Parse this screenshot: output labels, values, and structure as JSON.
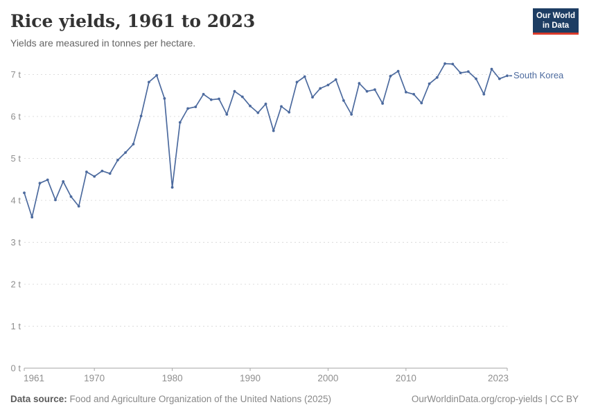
{
  "header": {
    "title": "Rice yields, 1961 to 2023",
    "subtitle": "Yields are measured in tonnes per hectare."
  },
  "logo": {
    "line1": "Our World",
    "line2": "in Data",
    "bg_color": "#1d3d63",
    "accent_color": "#d93a2b"
  },
  "chart_data": {
    "type": "line",
    "title": "Rice yields, 1961 to 2023",
    "ylabel": "tonnes per hectare",
    "xlabel": "",
    "xlim": [
      1961,
      2023
    ],
    "ylim": [
      0,
      7
    ],
    "grid": "horizontal-dashed",
    "legend_position": "end-of-line",
    "xticks": [
      1961,
      1970,
      1980,
      1990,
      2000,
      2010,
      2023
    ],
    "yticks": [
      0,
      1,
      2,
      3,
      4,
      5,
      6,
      7
    ],
    "ytick_suffix": " t",
    "axis_color": "#a5a5a5",
    "grid_color": "#dcdcdc",
    "tick_label_color": "#8f8f8f",
    "series": [
      {
        "name": "South Korea",
        "color": "#4C6A9E",
        "x": [
          1961,
          1962,
          1963,
          1964,
          1965,
          1966,
          1967,
          1968,
          1969,
          1970,
          1971,
          1972,
          1973,
          1974,
          1975,
          1976,
          1977,
          1978,
          1979,
          1980,
          1981,
          1982,
          1983,
          1984,
          1985,
          1986,
          1987,
          1988,
          1989,
          1990,
          1991,
          1992,
          1993,
          1994,
          1995,
          1996,
          1997,
          1998,
          1999,
          2000,
          2001,
          2002,
          2003,
          2004,
          2005,
          2006,
          2007,
          2008,
          2009,
          2010,
          2011,
          2012,
          2013,
          2014,
          2015,
          2016,
          2017,
          2018,
          2019,
          2020,
          2021,
          2022,
          2023
        ],
        "values": [
          4.18,
          3.6,
          4.41,
          4.49,
          4.01,
          4.45,
          4.09,
          3.86,
          4.68,
          4.57,
          4.7,
          4.64,
          4.96,
          5.14,
          5.34,
          6.01,
          6.82,
          6.98,
          6.43,
          4.31,
          5.86,
          6.19,
          6.23,
          6.53,
          6.4,
          6.42,
          6.05,
          6.6,
          6.47,
          6.25,
          6.09,
          6.3,
          5.66,
          6.24,
          6.1,
          6.82,
          6.95,
          6.46,
          6.67,
          6.75,
          6.88,
          6.38,
          6.05,
          6.79,
          6.6,
          6.64,
          6.31,
          6.96,
          7.08,
          6.58,
          6.53,
          6.32,
          6.78,
          6.93,
          7.26,
          7.25,
          7.04,
          7.07,
          6.9,
          6.53,
          7.13,
          6.9,
          6.97
        ]
      }
    ]
  },
  "footer": {
    "source_label": "Data source:",
    "source_text": " Food and Agriculture Organization of the United Nations (2025)",
    "credit": "OurWorldinData.org/crop-yields | CC BY"
  }
}
